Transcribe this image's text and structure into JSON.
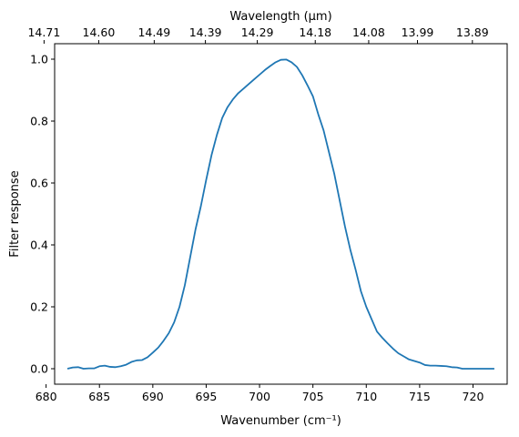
{
  "chart_data": {
    "type": "line",
    "xlabel": "Wavenumber (cm⁻¹)",
    "ylabel": "Filter response",
    "top_xlabel": "Wavelength (μm)",
    "xlim": [
      680.8,
      723.2
    ],
    "ylim": [
      -0.05,
      1.05
    ],
    "grid": false,
    "x_ticks": [
      680,
      685,
      690,
      695,
      700,
      705,
      710,
      715,
      720
    ],
    "y_ticks": [
      0.0,
      0.2,
      0.4,
      0.6,
      0.8,
      1.0
    ],
    "top_ticks": [
      "14.71",
      "14.60",
      "14.49",
      "14.39",
      "14.29",
      "14.18",
      "14.08",
      "13.99",
      "13.89"
    ],
    "line_color": "#1f77b4",
    "series": [
      {
        "x": [
          682.0,
          682.5,
          683.0,
          683.5,
          684.0,
          684.5,
          685.0,
          685.5,
          686.0,
          686.5,
          687.0,
          687.5,
          688.0,
          688.5,
          689.0,
          689.5,
          690.0,
          690.5,
          691.0,
          691.5,
          692.0,
          692.5,
          693.0,
          693.5,
          694.0,
          694.5,
          695.0,
          695.5,
          696.0,
          696.5,
          697.0,
          697.5,
          698.0,
          698.5,
          699.0,
          699.5,
          700.0,
          700.5,
          701.0,
          701.5,
          702.0,
          702.5,
          703.0,
          703.5,
          704.0,
          704.5,
          705.0,
          705.5,
          706.0,
          706.5,
          707.0,
          707.5,
          708.0,
          708.5,
          709.0,
          709.5,
          710.0,
          710.5,
          711.0,
          711.5,
          712.0,
          712.5,
          713.0,
          713.5,
          714.0,
          714.5,
          715.0,
          715.5,
          716.0,
          716.5,
          717.0,
          717.5,
          718.0,
          718.5,
          719.0,
          719.5,
          720.0,
          720.5,
          721.0,
          721.5,
          722.0
        ],
        "y": [
          0.0,
          0.004,
          0.005,
          0.0,
          0.001,
          0.001,
          0.008,
          0.01,
          0.006,
          0.005,
          0.008,
          0.013,
          0.022,
          0.027,
          0.028,
          0.037,
          0.052,
          0.068,
          0.09,
          0.115,
          0.15,
          0.2,
          0.27,
          0.36,
          0.45,
          0.525,
          0.61,
          0.69,
          0.755,
          0.81,
          0.845,
          0.87,
          0.89,
          0.905,
          0.92,
          0.935,
          0.95,
          0.965,
          0.978,
          0.99,
          0.998,
          0.999,
          0.99,
          0.975,
          0.948,
          0.915,
          0.88,
          0.822,
          0.77,
          0.7,
          0.63,
          0.545,
          0.46,
          0.385,
          0.32,
          0.25,
          0.2,
          0.16,
          0.12,
          0.1,
          0.082,
          0.065,
          0.05,
          0.04,
          0.03,
          0.025,
          0.02,
          0.012,
          0.01,
          0.01,
          0.009,
          0.008,
          0.005,
          0.004,
          0.0,
          0.0,
          0.0,
          0.0,
          0.0,
          0.0,
          0.0
        ]
      }
    ]
  }
}
